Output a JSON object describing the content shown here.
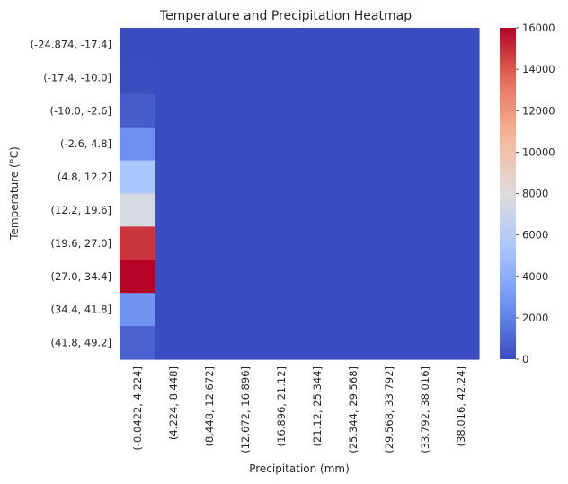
{
  "chart_data": {
    "type": "heatmap",
    "title": "Temperature and Precipitation Heatmap",
    "xlabel": "Precipitation (mm)",
    "ylabel": "Temperature (°C)",
    "x_categories": [
      "(-0.0422, 4.224]",
      "(4.224, 8.448]",
      "(8.448, 12.672]",
      "(12.672, 16.896]",
      "(16.896, 21.12]",
      "(21.12, 25.344]",
      "(25.344, 29.568]",
      "(29.568, 33.792]",
      "(33.792, 38.016]",
      "(38.016, 42.24]"
    ],
    "y_categories": [
      "(-24.874, -17.4]",
      "(-17.4, -10.0]",
      "(-10.0, -2.6]",
      "(-2.6, 4.8]",
      "(4.8, 12.2]",
      "(12.2, 19.6]",
      "(19.6, 27.0]",
      "(27.0, 34.4]",
      "(34.4, 41.8]",
      "(41.8, 49.2]"
    ],
    "values": [
      [
        0,
        0,
        0,
        0,
        0,
        0,
        0,
        0,
        0,
        0
      ],
      [
        30,
        0,
        0,
        0,
        0,
        0,
        0,
        0,
        0,
        0
      ],
      [
        600,
        0,
        0,
        0,
        0,
        0,
        0,
        0,
        0,
        0
      ],
      [
        2600,
        0,
        0,
        0,
        0,
        0,
        0,
        0,
        0,
        0
      ],
      [
        5300,
        0,
        0,
        0,
        0,
        0,
        0,
        0,
        0,
        0
      ],
      [
        7600,
        0,
        0,
        0,
        0,
        0,
        0,
        0,
        0,
        0
      ],
      [
        14800,
        0,
        0,
        0,
        0,
        0,
        0,
        0,
        0,
        0
      ],
      [
        16000,
        0,
        0,
        0,
        0,
        0,
        0,
        0,
        0,
        0
      ],
      [
        2800,
        0,
        0,
        0,
        0,
        0,
        0,
        0,
        0,
        0
      ],
      [
        800,
        0,
        0,
        0,
        0,
        0,
        0,
        0,
        0,
        0
      ]
    ],
    "colormap": "coolwarm",
    "colormap_stops": [
      "#3b4cc0",
      "#6f92f3",
      "#aac7fd",
      "#dddcdc",
      "#f7b89c",
      "#e7745b",
      "#b40426"
    ],
    "vmin": 0,
    "vmax": 16000,
    "colorbar_ticks": [
      0,
      2000,
      4000,
      6000,
      8000,
      10000,
      12000,
      14000,
      16000
    ],
    "colorbar_tick_labels": [
      "0",
      "2000",
      "4000",
      "6000",
      "8000",
      "10000",
      "12000",
      "14000",
      "16000"
    ]
  }
}
